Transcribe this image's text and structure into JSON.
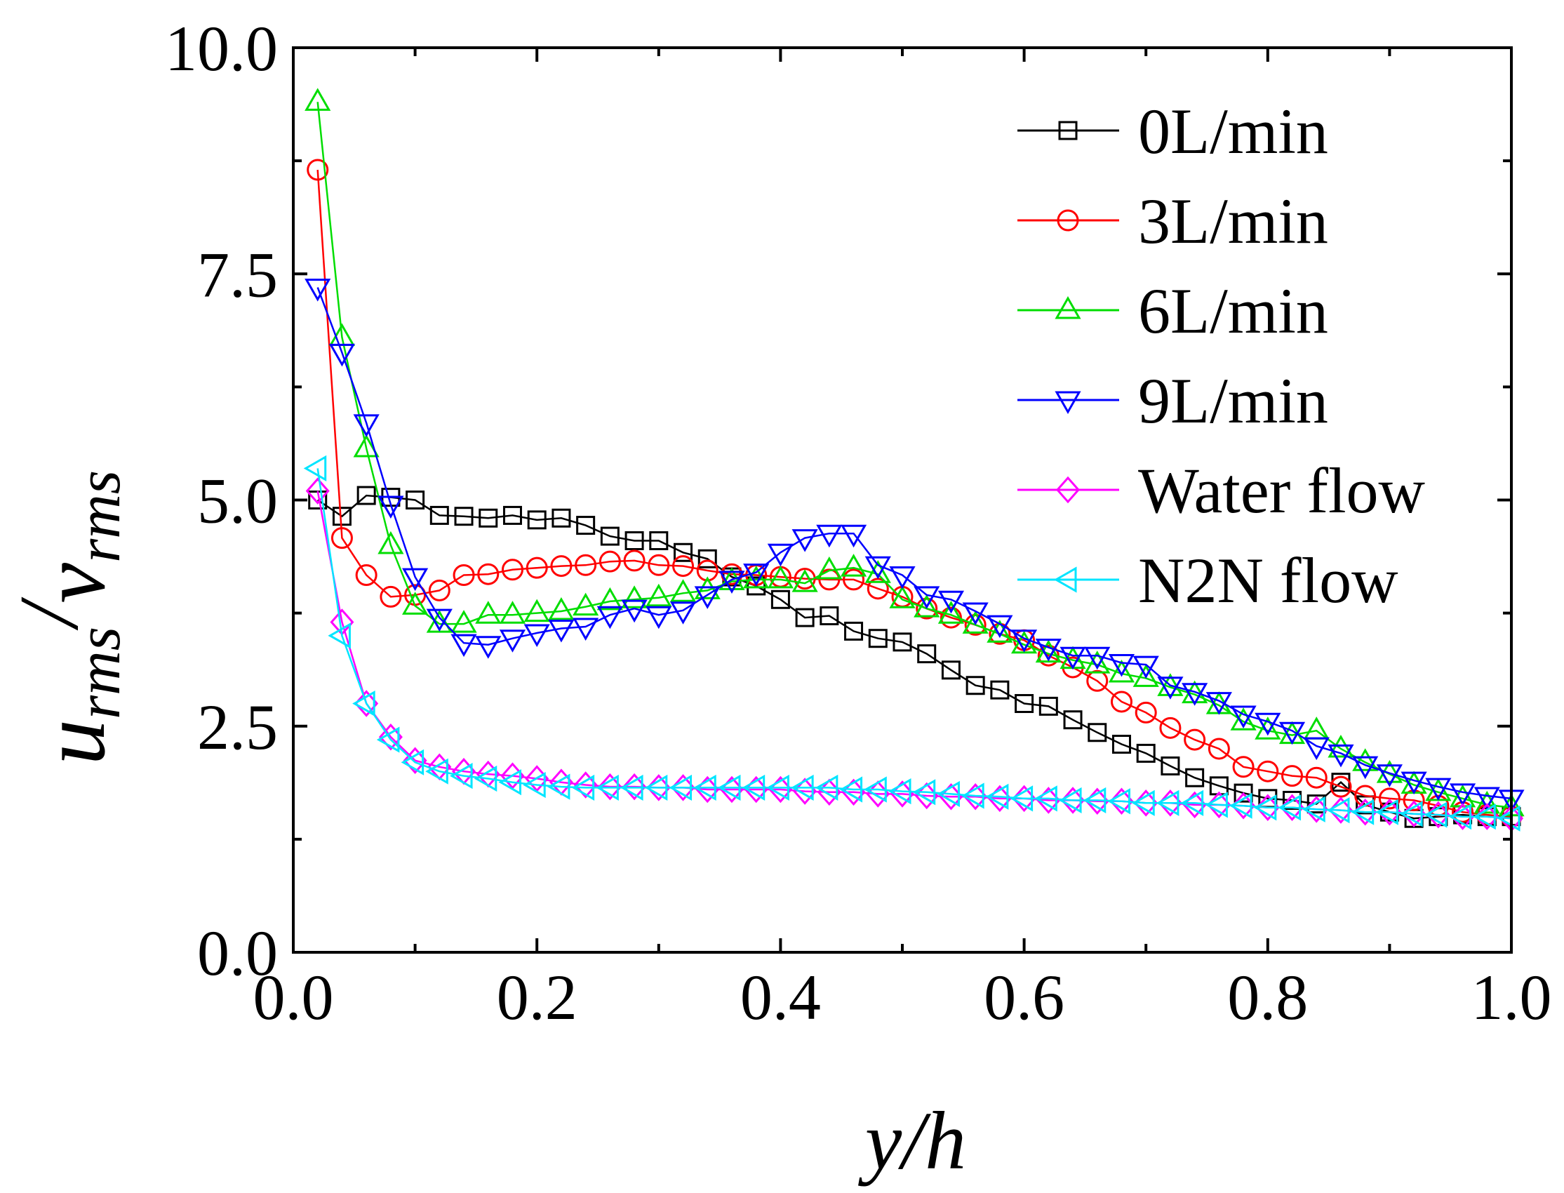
{
  "chart_data": {
    "type": "line",
    "title": "",
    "xlabel": "y/h",
    "ylabel": {
      "main1": "u",
      "sub1": "rms",
      "slash": "/",
      "main2": "v",
      "sub2": "rms"
    },
    "xlim": [
      0.0,
      1.0
    ],
    "ylim": [
      0.0,
      10.0
    ],
    "xticks": [
      "0.0",
      "0.2",
      "0.4",
      "0.6",
      "0.8",
      "1.0"
    ],
    "yticks": [
      "0.0",
      "2.5",
      "5.0",
      "7.5",
      "10.0"
    ],
    "legend_position": "top-right",
    "x": [
      0.02,
      0.04,
      0.06,
      0.08,
      0.1,
      0.12,
      0.14,
      0.16,
      0.18,
      0.2,
      0.22,
      0.24,
      0.26,
      0.28,
      0.3,
      0.32,
      0.34,
      0.36,
      0.38,
      0.4,
      0.42,
      0.44,
      0.46,
      0.48,
      0.5,
      0.52,
      0.54,
      0.56,
      0.58,
      0.6,
      0.62,
      0.64,
      0.66,
      0.68,
      0.7,
      0.72,
      0.74,
      0.76,
      0.78,
      0.8,
      0.82,
      0.84,
      0.86,
      0.88,
      0.9,
      0.92,
      0.94,
      0.96,
      0.98,
      1.0
    ],
    "series": [
      {
        "name": "0L/min",
        "color": "#000000",
        "marker": "square",
        "values": [
          5.0,
          4.82,
          5.05,
          5.03,
          5.0,
          4.83,
          4.82,
          4.8,
          4.83,
          4.78,
          4.8,
          4.72,
          4.6,
          4.55,
          4.55,
          4.42,
          4.35,
          4.15,
          4.05,
          3.9,
          3.7,
          3.72,
          3.55,
          3.47,
          3.43,
          3.3,
          3.12,
          2.95,
          2.9,
          2.75,
          2.72,
          2.57,
          2.43,
          2.3,
          2.2,
          2.06,
          1.93,
          1.84,
          1.76,
          1.7,
          1.68,
          1.64,
          1.88,
          1.63,
          1.55,
          1.48,
          1.5,
          1.52,
          1.5,
          1.5
        ]
      },
      {
        "name": "3L/min",
        "color": "#ff0000",
        "marker": "circle",
        "values": [
          8.65,
          4.58,
          4.17,
          3.93,
          3.95,
          4.0,
          4.17,
          4.18,
          4.23,
          4.25,
          4.27,
          4.28,
          4.32,
          4.33,
          4.28,
          4.27,
          4.22,
          4.18,
          4.17,
          4.15,
          4.13,
          4.12,
          4.12,
          4.02,
          3.93,
          3.8,
          3.7,
          3.62,
          3.52,
          3.45,
          3.28,
          3.15,
          3.0,
          2.77,
          2.65,
          2.48,
          2.35,
          2.25,
          2.05,
          2.0,
          1.95,
          1.93,
          1.83,
          1.73,
          1.7,
          1.68,
          1.62,
          1.55,
          1.52,
          1.5
        ]
      },
      {
        "name": "6L/min",
        "color": "#00dd00",
        "marker": "triangle-up",
        "values": [
          9.4,
          6.8,
          5.57,
          4.5,
          3.83,
          3.63,
          3.63,
          3.73,
          3.73,
          3.75,
          3.77,
          3.82,
          3.88,
          3.9,
          3.92,
          3.97,
          4.0,
          4.1,
          4.12,
          4.12,
          4.08,
          4.22,
          4.25,
          4.18,
          3.9,
          3.8,
          3.73,
          3.62,
          3.52,
          3.4,
          3.3,
          3.23,
          3.18,
          3.08,
          3.03,
          2.93,
          2.85,
          2.73,
          2.55,
          2.45,
          2.4,
          2.45,
          2.25,
          2.1,
          1.97,
          1.85,
          1.77,
          1.7,
          1.63,
          1.6
        ]
      },
      {
        "name": "9L/min",
        "color": "#0000ff",
        "marker": "triangle-down",
        "values": [
          7.35,
          6.63,
          5.85,
          4.95,
          4.15,
          3.7,
          3.42,
          3.4,
          3.47,
          3.53,
          3.58,
          3.6,
          3.73,
          3.8,
          3.73,
          3.78,
          3.95,
          4.12,
          4.2,
          4.42,
          4.58,
          4.63,
          4.63,
          4.28,
          4.17,
          3.95,
          3.9,
          3.77,
          3.63,
          3.47,
          3.37,
          3.28,
          3.28,
          3.2,
          3.18,
          2.95,
          2.88,
          2.78,
          2.63,
          2.55,
          2.45,
          2.28,
          2.2,
          2.07,
          1.98,
          1.9,
          1.83,
          1.77,
          1.73,
          1.7
        ]
      },
      {
        "name": "Water flow",
        "color": "#ff00ff",
        "marker": "diamond",
        "values": [
          5.1,
          3.65,
          2.75,
          2.38,
          2.12,
          2.05,
          2.0,
          1.97,
          1.95,
          1.92,
          1.88,
          1.85,
          1.83,
          1.83,
          1.82,
          1.82,
          1.8,
          1.8,
          1.8,
          1.8,
          1.78,
          1.77,
          1.77,
          1.75,
          1.75,
          1.73,
          1.72,
          1.72,
          1.7,
          1.7,
          1.68,
          1.68,
          1.67,
          1.67,
          1.65,
          1.65,
          1.63,
          1.63,
          1.62,
          1.6,
          1.6,
          1.58,
          1.57,
          1.55,
          1.55,
          1.53,
          1.52,
          1.5,
          1.5,
          1.48
        ]
      },
      {
        "name": "N2N flow",
        "color": "#00e5ff",
        "marker": "triangle-left",
        "values": [
          5.35,
          3.5,
          2.75,
          2.35,
          2.1,
          2.0,
          1.95,
          1.92,
          1.88,
          1.85,
          1.83,
          1.82,
          1.82,
          1.82,
          1.82,
          1.82,
          1.82,
          1.82,
          1.82,
          1.82,
          1.82,
          1.82,
          1.8,
          1.8,
          1.78,
          1.77,
          1.75,
          1.73,
          1.72,
          1.7,
          1.7,
          1.68,
          1.68,
          1.67,
          1.65,
          1.65,
          1.65,
          1.63,
          1.62,
          1.6,
          1.6,
          1.58,
          1.57,
          1.55,
          1.55,
          1.53,
          1.52,
          1.5,
          1.5,
          1.48
        ]
      }
    ]
  }
}
